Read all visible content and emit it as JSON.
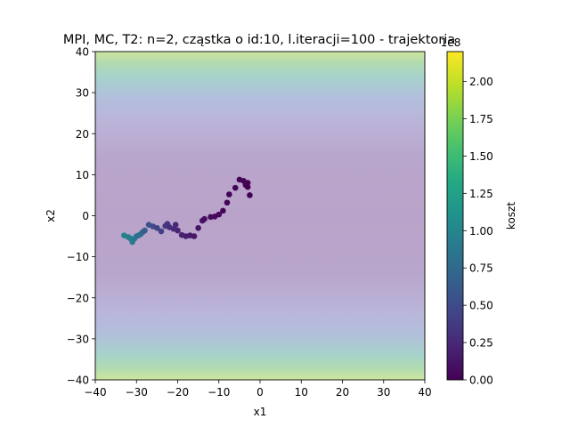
{
  "chart_data": {
    "type": "scatter",
    "title": "MPI, MC, T2: n=2, cząstka o id:10, l.iteracji=100 - trajektoria",
    "xlabel": "x1",
    "ylabel": "x2",
    "xlim": [
      -40,
      40
    ],
    "ylim": [
      -40,
      40
    ],
    "x_ticks": [
      -40,
      -30,
      -20,
      -10,
      0,
      10,
      20,
      30,
      40
    ],
    "y_ticks": [
      -40,
      -30,
      -20,
      -10,
      0,
      10,
      20,
      30,
      40
    ],
    "x_tick_labels": [
      "−40",
      "−30",
      "−20",
      "−10",
      "0",
      "10",
      "20",
      "30",
      "40"
    ],
    "y_tick_labels": [
      "−40",
      "−30",
      "−20",
      "−10",
      "0",
      "10",
      "20",
      "30",
      "40"
    ],
    "background": "cost surface heatmap (viridis, translucent), cost rises toward |x2| = 40",
    "grid": false,
    "colorbar": {
      "label": "koszt",
      "offset_label": "1e8",
      "range": [
        0,
        2.2
      ],
      "ticks": [
        0.0,
        0.25,
        0.5,
        0.75,
        1.0,
        1.25,
        1.5,
        1.75,
        2.0
      ],
      "tick_labels": [
        "0.00",
        "0.25",
        "0.50",
        "0.75",
        "1.00",
        "1.25",
        "1.50",
        "1.75",
        "2.00"
      ],
      "colormap": "viridis"
    },
    "series": [
      {
        "x": [
          -33,
          -32,
          -31.5,
          -31,
          -30.5,
          -30,
          -29.5,
          -29,
          -28.5,
          -28,
          -27,
          -26,
          -25,
          -24,
          -23,
          -22.5,
          -22,
          -21,
          -20.5,
          -20,
          -19,
          -18,
          -17,
          -16,
          -15,
          -14,
          -13.5,
          -12,
          -11,
          -10,
          -9,
          -8,
          -7.5,
          -6,
          -5,
          -4,
          -3.5,
          -3,
          -3,
          -2.5
        ],
        "y": [
          -4.8,
          -5.2,
          -5.5,
          -6.4,
          -5.6,
          -5,
          -4.8,
          -4.5,
          -4,
          -3.6,
          -2.2,
          -2.6,
          -3,
          -3.8,
          -2.5,
          -2,
          -2.8,
          -3.2,
          -2.2,
          -3.6,
          -4.7,
          -5,
          -4.8,
          -5,
          -3,
          -1.2,
          -0.8,
          -0.3,
          -0.2,
          0.3,
          1.2,
          3.2,
          5.2,
          6.8,
          8.8,
          8.5,
          7.5,
          7,
          8,
          5
        ],
        "cost_1e8": [
          0.96,
          0.96,
          0.94,
          0.9,
          0.88,
          0.85,
          0.82,
          0.78,
          0.72,
          0.65,
          0.55,
          0.5,
          0.45,
          0.42,
          0.38,
          0.33,
          0.3,
          0.28,
          0.25,
          0.22,
          0.2,
          0.18,
          0.16,
          0.14,
          0.12,
          0.1,
          0.08,
          0.06,
          0.05,
          0.04,
          0.03,
          0.02,
          0.02,
          0.01,
          0.01,
          0.01,
          0.0,
          0.0,
          0.0,
          0.0
        ]
      }
    ]
  }
}
